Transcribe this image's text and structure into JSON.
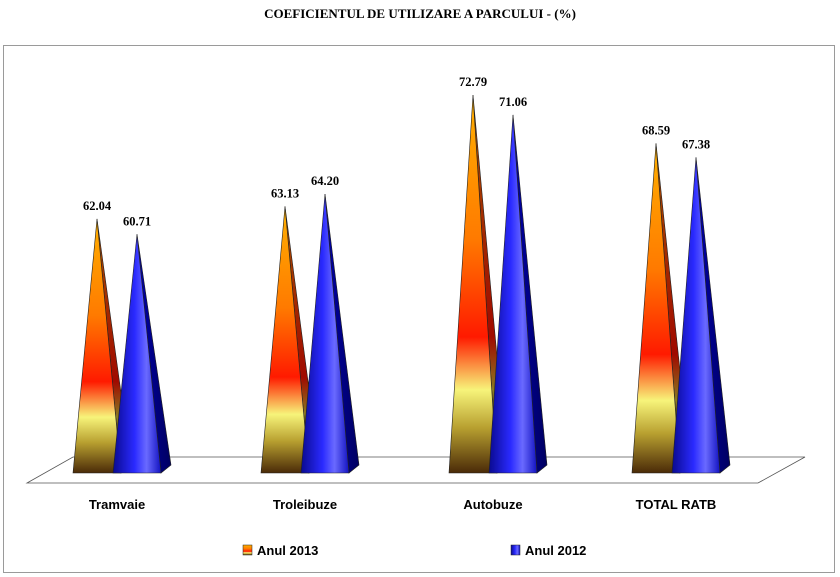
{
  "chart_data": {
    "type": "bar",
    "title": "COEFICIENTUL  DE UTILIZARE A PARCULUI  -  (%)",
    "categories": [
      "Tramvaie",
      "Troleibuze",
      "Autobuze",
      "TOTAL RATB"
    ],
    "series": [
      {
        "name": "Anul 2013",
        "values": [
          62.04,
          63.13,
          72.79,
          68.59
        ],
        "color": "#ff8000"
      },
      {
        "name": "Anul 2012",
        "values": [
          60.71,
          64.2,
          71.06,
          67.38
        ],
        "color": "#1a1aff"
      }
    ],
    "value_labels": [
      [
        "62.04",
        "63.13",
        "72.79",
        "68.59"
      ],
      [
        "60.71",
        "64.20",
        "71.06",
        "67.38"
      ]
    ],
    "ylim": [
      40,
      75
    ],
    "bar_shape": "pyramid",
    "legend_position": "bottom",
    "grid": false
  }
}
